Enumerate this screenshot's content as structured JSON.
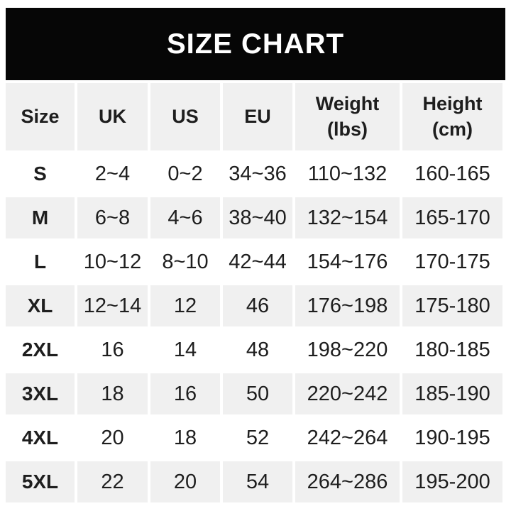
{
  "banner": {
    "title": "SIZE CHART"
  },
  "colors": {
    "banner_bg": "#060606",
    "banner_text": "#ffffff",
    "cell_gray": "#f0f0f0",
    "text": "#1e1e1e",
    "page_bg": "#ffffff"
  },
  "chart_data": {
    "type": "table",
    "title": "SIZE CHART",
    "columns": {
      "size": "Size",
      "uk": "UK",
      "us": "US",
      "eu": "EU",
      "weight": [
        "Weight",
        "(lbs)"
      ],
      "height": [
        "Height",
        "(cm)"
      ]
    },
    "rows": [
      {
        "size": "S",
        "uk": "2~4",
        "us": "0~2",
        "eu": "34~36",
        "weight": "110~132",
        "height": "160-165"
      },
      {
        "size": "M",
        "uk": "6~8",
        "us": "4~6",
        "eu": "38~40",
        "weight": "132~154",
        "height": "165-170"
      },
      {
        "size": "L",
        "uk": "10~12",
        "us": "8~10",
        "eu": "42~44",
        "weight": "154~176",
        "height": "170-175"
      },
      {
        "size": "XL",
        "uk": "12~14",
        "us": "12",
        "eu": "46",
        "weight": "176~198",
        "height": "175-180"
      },
      {
        "size": "2XL",
        "uk": "16",
        "us": "14",
        "eu": "48",
        "weight": "198~220",
        "height": "180-185"
      },
      {
        "size": "3XL",
        "uk": "18",
        "us": "16",
        "eu": "50",
        "weight": "220~242",
        "height": "185-190"
      },
      {
        "size": "4XL",
        "uk": "20",
        "us": "18",
        "eu": "52",
        "weight": "242~264",
        "height": "190-195"
      },
      {
        "size": "5XL",
        "uk": "22",
        "us": "20",
        "eu": "54",
        "weight": "264~286",
        "height": "195-200"
      }
    ]
  }
}
